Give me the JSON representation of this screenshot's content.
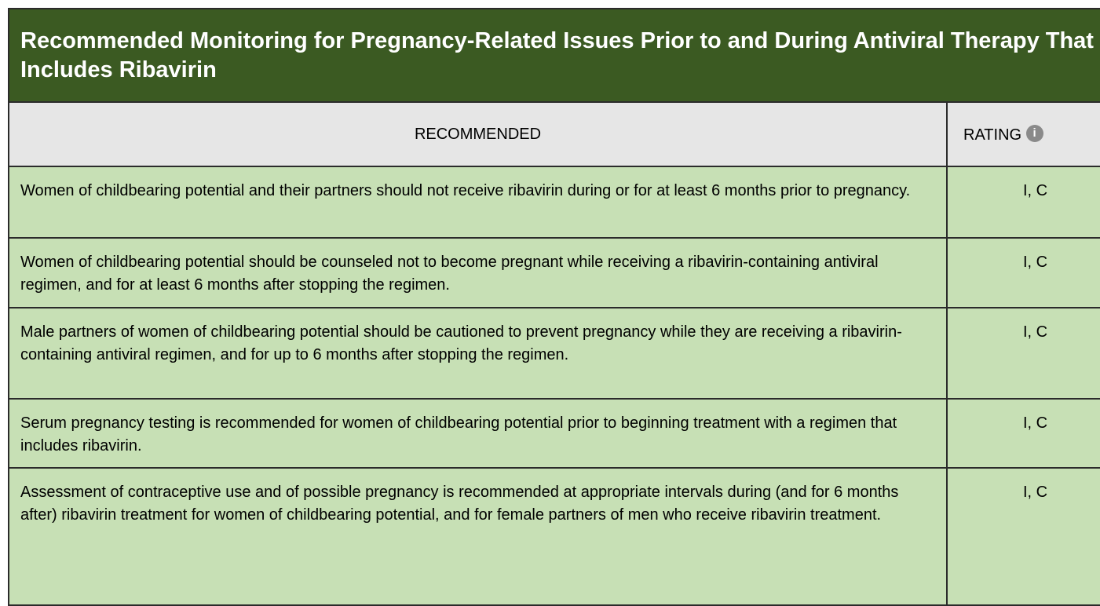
{
  "title": "Recommended Monitoring for Pregnancy-Related Issues Prior to and During Antiviral Therapy That Includes Ribavirin",
  "table": {
    "headers": [
      "RECOMMENDED",
      "RATING"
    ],
    "rows": [
      [
        "Women of childbearing potential and their partners should not receive ribavirin during or for at least 6 months prior to pregnancy.",
        "I, C"
      ],
      [
        "Women of childbearing potential should be counseled not to become pregnant while receiving a ribavirin-containing antiviral regimen, and for at least 6 months after stopping the regimen.",
        "I, C"
      ],
      [
        "Male partners of women of childbearing potential should be cautioned to prevent pregnancy while they are receiving a ribavirin-containing antiviral regimen, and for up to 6 months after stopping the regimen.",
        "I, C"
      ],
      [
        "Serum pregnancy testing is recommended for women of childbearing potential prior to beginning treatment with a regimen that includes ribavirin.",
        "I, C"
      ],
      [
        "Assessment of contraceptive use and of possible pregnancy is recommended at appropriate intervals during (and for 6 months after) ribavirin treatment for women of childbearing potential, and for female partners of men who receive ribavirin treatment.",
        "I, C"
      ]
    ]
  }
}
